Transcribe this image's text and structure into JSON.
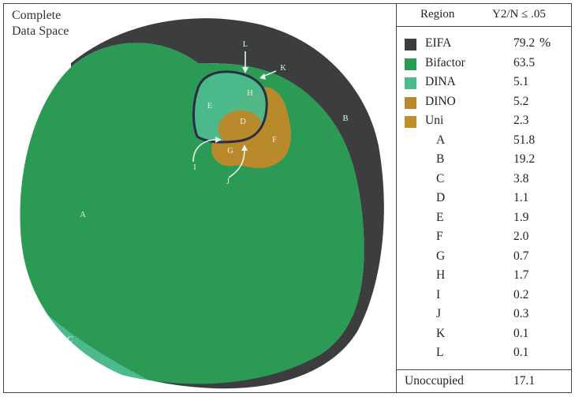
{
  "diagram": {
    "space_label_line1": "Complete",
    "space_label_line2": "Data Space",
    "region_labels": [
      "A",
      "B",
      "C",
      "D",
      "E",
      "F",
      "G",
      "H",
      "I",
      "J",
      "K",
      "L"
    ]
  },
  "legend": {
    "header_region": "Region",
    "header_stat": "Y2/N ≤ .05",
    "models": [
      {
        "name": "EIFA",
        "value": "79.2",
        "unit": "%",
        "color": "#3b3d3f"
      },
      {
        "name": "Bifactor",
        "value": "63.5",
        "color": "#2a9a54"
      },
      {
        "name": "DINA",
        "value": "5.1",
        "color": "#4dba8c"
      },
      {
        "name": "DINO",
        "value": "5.2",
        "color": "#b98a2b"
      },
      {
        "name": "Uni",
        "value": "2.3",
        "color": "#c08f2c"
      }
    ],
    "regions": [
      {
        "name": "A",
        "value": "51.8"
      },
      {
        "name": "B",
        "value": "19.2"
      },
      {
        "name": "C",
        "value": "3.8"
      },
      {
        "name": "D",
        "value": "1.1"
      },
      {
        "name": "E",
        "value": "1.9"
      },
      {
        "name": "F",
        "value": "2.0"
      },
      {
        "name": "G",
        "value": "0.7"
      },
      {
        "name": "H",
        "value": "1.7"
      },
      {
        "name": "I",
        "value": "0.2"
      },
      {
        "name": "J",
        "value": "0.3"
      },
      {
        "name": "K",
        "value": "0.1"
      },
      {
        "name": "L",
        "value": "0.1"
      }
    ],
    "footer_label": "Unoccupied",
    "footer_value": "17.1"
  }
}
